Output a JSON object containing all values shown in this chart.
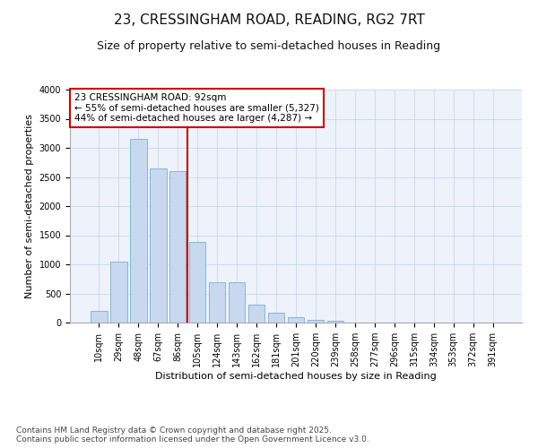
{
  "title_line1": "23, CRESSINGHAM ROAD, READING, RG2 7RT",
  "title_line2": "Size of property relative to semi-detached houses in Reading",
  "xlabel": "Distribution of semi-detached houses by size in Reading",
  "ylabel": "Number of semi-detached properties",
  "categories": [
    "10sqm",
    "29sqm",
    "48sqm",
    "67sqm",
    "86sqm",
    "105sqm",
    "124sqm",
    "143sqm",
    "162sqm",
    "181sqm",
    "201sqm",
    "220sqm",
    "239sqm",
    "258sqm",
    "277sqm",
    "296sqm",
    "315sqm",
    "334sqm",
    "353sqm",
    "372sqm",
    "391sqm"
  ],
  "values": [
    200,
    1050,
    3150,
    2650,
    2600,
    1380,
    700,
    700,
    310,
    175,
    90,
    50,
    30,
    0,
    0,
    0,
    0,
    0,
    0,
    0,
    0
  ],
  "bar_color": "#c8d8ef",
  "bar_edge_color": "#7aafd4",
  "vline_x_index": 4,
  "vline_color": "#cc0000",
  "annotation_text": "23 CRESSINGHAM ROAD: 92sqm\n← 55% of semi-detached houses are smaller (5,327)\n44% of semi-detached houses are larger (4,287) →",
  "annotation_box_color": "#ffffff",
  "annotation_box_edge": "#cc0000",
  "plot_bg_color": "#eef2fa",
  "fig_bg_color": "#ffffff",
  "ylim": [
    0,
    4000
  ],
  "yticks": [
    0,
    500,
    1000,
    1500,
    2000,
    2500,
    3000,
    3500,
    4000
  ],
  "title_fontsize": 11,
  "subtitle_fontsize": 9,
  "axis_label_fontsize": 8,
  "tick_fontsize": 7,
  "annotation_fontsize": 7.5,
  "footer_fontsize": 6.5,
  "footer_line1": "Contains HM Land Registry data © Crown copyright and database right 2025.",
  "footer_line2": "Contains public sector information licensed under the Open Government Licence v3.0."
}
